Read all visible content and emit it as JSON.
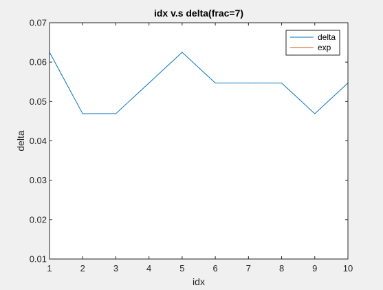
{
  "chart_data": {
    "type": "line",
    "title": "idx v.s delta(frac=7)",
    "xlabel": "idx",
    "ylabel": "delta",
    "xlim": [
      1,
      10
    ],
    "ylim": [
      0.01,
      0.07
    ],
    "xticks": [
      "1",
      "2",
      "3",
      "4",
      "5",
      "6",
      "7",
      "8",
      "9",
      "10"
    ],
    "yticks": [
      "0.01",
      "0.02",
      "0.03",
      "0.04",
      "0.05",
      "0.06",
      "0.07"
    ],
    "x": [
      1,
      2,
      3,
      4,
      5,
      6,
      7,
      8,
      9,
      10
    ],
    "series": [
      {
        "name": "delta",
        "color": "#0072BD",
        "values": [
          0.0625,
          0.0469,
          0.0469,
          0.0547,
          0.0625,
          0.0547,
          0.0547,
          0.0547,
          0.0469,
          0.0547
        ]
      },
      {
        "name": "exp",
        "color": "#D95319",
        "values": [
          0.01,
          0.01,
          0.01,
          0.01,
          0.01,
          0.01,
          0.01,
          0.01,
          0.01,
          0.01
        ]
      }
    ],
    "grid": false,
    "legend_position": "top-right"
  }
}
